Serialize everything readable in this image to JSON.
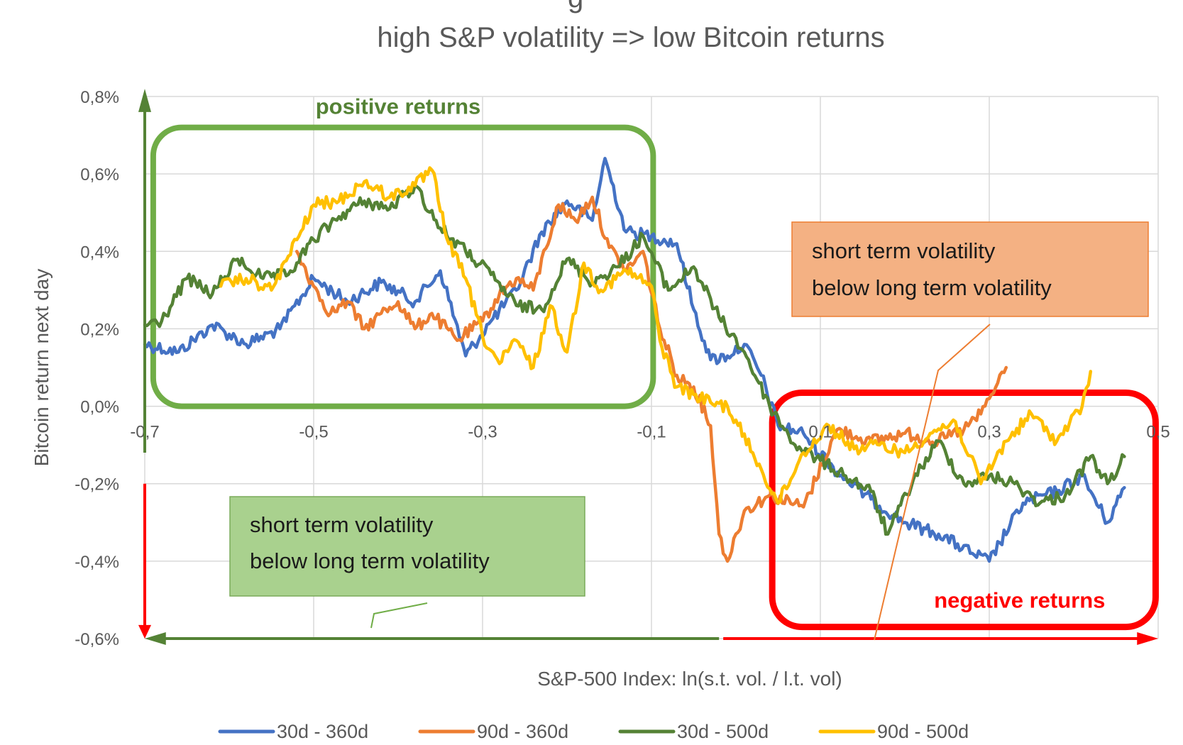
{
  "chart_data": {
    "type": "line",
    "title_partial": "g",
    "subtitle": "high S&P volatility => low Bitcoin returns",
    "xlabel": "S&P-500 Index: ln(s.t. vol. / l.t. vol)",
    "ylabel": "Bitcoin return next day",
    "xlim": [
      -0.7,
      0.5
    ],
    "ylim": [
      -0.6,
      0.8
    ],
    "x_ticks": [
      -0.7,
      -0.5,
      -0.3,
      -0.1,
      0.1,
      0.3,
      0.5
    ],
    "x_tick_labels": [
      "-0,7",
      "-0,5",
      "-0,3",
      "-0,1",
      "0,1",
      "0,3",
      "0,5"
    ],
    "y_ticks": [
      -0.6,
      -0.4,
      -0.2,
      0.0,
      0.2,
      0.4,
      0.6,
      0.8
    ],
    "y_tick_labels": [
      "-0,6%",
      "-0,4%",
      "-0,2%",
      "0,0%",
      "0,2%",
      "0,4%",
      "0,6%",
      "0,8%"
    ],
    "grid": true,
    "legend_position": "bottom",
    "series": [
      {
        "name": "30d - 360d",
        "color": "#4472c4",
        "x": [
          -0.7,
          -0.66,
          -0.62,
          -0.58,
          -0.54,
          -0.5,
          -0.46,
          -0.42,
          -0.38,
          -0.35,
          -0.32,
          -0.29,
          -0.26,
          -0.23,
          -0.2,
          -0.17,
          -0.155,
          -0.13,
          -0.1,
          -0.07,
          -0.05,
          -0.03,
          -0.01,
          0.01,
          0.03,
          0.05,
          0.08,
          0.12,
          0.16,
          0.2,
          0.24,
          0.28,
          0.3,
          0.34,
          0.38,
          0.41,
          0.44,
          0.46
        ],
        "y": [
          0.16,
          0.14,
          0.21,
          0.16,
          0.2,
          0.33,
          0.27,
          0.32,
          0.27,
          0.35,
          0.13,
          0.22,
          0.3,
          0.45,
          0.53,
          0.48,
          0.64,
          0.45,
          0.44,
          0.42,
          0.25,
          0.12,
          0.13,
          0.16,
          0.08,
          -0.05,
          -0.07,
          -0.17,
          -0.24,
          -0.3,
          -0.33,
          -0.38,
          -0.4,
          -0.25,
          -0.22,
          -0.18,
          -0.3,
          -0.21
        ]
      },
      {
        "name": "90d - 360d",
        "color": "#ed7d31",
        "x": [
          -0.52,
          -0.5,
          -0.48,
          -0.46,
          -0.44,
          -0.42,
          -0.4,
          -0.38,
          -0.36,
          -0.33,
          -0.3,
          -0.28,
          -0.26,
          -0.24,
          -0.21,
          -0.19,
          -0.17,
          -0.15,
          -0.13,
          -0.11,
          -0.09,
          -0.07,
          -0.05,
          -0.03,
          -0.02,
          -0.01,
          0.01,
          0.04,
          0.08,
          0.12,
          0.16,
          0.2,
          0.24,
          0.27,
          0.29,
          0.3,
          0.31,
          0.32
        ],
        "y": [
          0.4,
          0.31,
          0.24,
          0.27,
          0.2,
          0.24,
          0.27,
          0.2,
          0.24,
          0.17,
          0.22,
          0.29,
          0.33,
          0.3,
          0.52,
          0.48,
          0.54,
          0.41,
          0.35,
          0.4,
          0.2,
          0.08,
          0.05,
          -0.05,
          -0.33,
          -0.4,
          -0.27,
          -0.23,
          -0.26,
          -0.06,
          -0.09,
          -0.07,
          -0.09,
          -0.06,
          -0.02,
          0.02,
          0.06,
          0.1
        ]
      },
      {
        "name": "30d - 500d",
        "color": "#548235",
        "x": [
          -0.7,
          -0.68,
          -0.65,
          -0.62,
          -0.59,
          -0.56,
          -0.53,
          -0.5,
          -0.47,
          -0.44,
          -0.41,
          -0.38,
          -0.35,
          -0.32,
          -0.29,
          -0.26,
          -0.23,
          -0.2,
          -0.17,
          -0.14,
          -0.11,
          -0.08,
          -0.05,
          -0.02,
          0.01,
          0.04,
          0.07,
          0.1,
          0.13,
          0.16,
          0.18,
          0.21,
          0.24,
          0.27,
          0.3,
          0.33,
          0.36,
          0.39,
          0.42,
          0.44,
          0.46
        ],
        "y": [
          0.21,
          0.22,
          0.33,
          0.29,
          0.38,
          0.33,
          0.34,
          0.43,
          0.49,
          0.53,
          0.51,
          0.57,
          0.46,
          0.4,
          0.34,
          0.26,
          0.25,
          0.38,
          0.32,
          0.36,
          0.44,
          0.3,
          0.36,
          0.23,
          0.14,
          0.0,
          -0.1,
          -0.14,
          -0.18,
          -0.22,
          -0.33,
          -0.19,
          -0.09,
          -0.2,
          -0.18,
          -0.2,
          -0.25,
          -0.23,
          -0.13,
          -0.2,
          -0.13
        ]
      },
      {
        "name": "90d - 500d",
        "color": "#ffc000",
        "x": [
          -0.61,
          -0.58,
          -0.55,
          -0.52,
          -0.5,
          -0.47,
          -0.44,
          -0.41,
          -0.38,
          -0.36,
          -0.34,
          -0.32,
          -0.3,
          -0.28,
          -0.26,
          -0.24,
          -0.22,
          -0.2,
          -0.18,
          -0.16,
          -0.13,
          -0.1,
          -0.09,
          -0.07,
          -0.05,
          -0.03,
          -0.01,
          0.02,
          0.05,
          0.08,
          0.11,
          0.14,
          0.17,
          0.2,
          0.23,
          0.26,
          0.29,
          0.32,
          0.35,
          0.38,
          0.41,
          0.42
        ],
        "y": [
          0.31,
          0.33,
          0.3,
          0.43,
          0.52,
          0.53,
          0.58,
          0.54,
          0.57,
          0.61,
          0.42,
          0.33,
          0.18,
          0.11,
          0.17,
          0.1,
          0.26,
          0.14,
          0.37,
          0.3,
          0.35,
          0.31,
          0.17,
          0.05,
          0.03,
          0.01,
          0.0,
          -0.12,
          -0.25,
          -0.12,
          -0.05,
          -0.11,
          -0.1,
          -0.12,
          -0.07,
          -0.04,
          -0.2,
          -0.09,
          -0.02,
          -0.09,
          0.0,
          0.09
        ]
      }
    ],
    "annotations": {
      "positive_region_label": "positive returns",
      "negative_region_label": "negative returns",
      "callout_green_line1": "short term volatility",
      "callout_green_line2": "below long term volatility",
      "callout_orange_line1": "short term volatility",
      "callout_orange_line2": "below long term volatility"
    },
    "colors": {
      "axis_text": "#595959",
      "grid": "#d9d9d9",
      "positive_green": "#70ad47",
      "positive_text": "#548235",
      "negative_red": "#ff0000",
      "callout_green_fill": "#a9d18e",
      "callout_orange_fill": "#f4b183"
    }
  }
}
